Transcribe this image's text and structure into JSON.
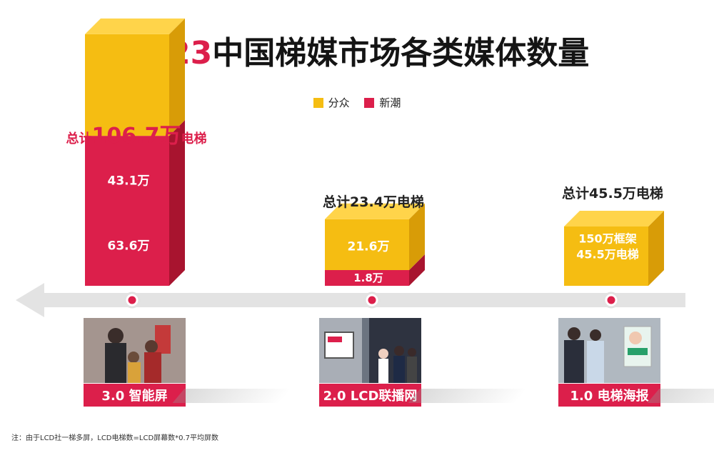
{
  "title": {
    "year": "2023",
    "rest": "中国梯媒市场各类媒体数量"
  },
  "legend": [
    {
      "label": "分众",
      "color": "#f5bd12"
    },
    {
      "label": "新潮",
      "color": "#dc1f4b"
    }
  ],
  "chart_data": {
    "type": "bar",
    "stacked": true,
    "unit": "万",
    "categories": [
      "3.0 智能屏",
      "2.0 LCD联播网",
      "1.0 电梯海报"
    ],
    "series": [
      {
        "name": "新潮",
        "values": [
          63.6,
          1.8,
          0
        ],
        "labels": [
          "63.6万",
          "1.8万",
          ""
        ]
      },
      {
        "name": "分众",
        "values": [
          43.1,
          21.6,
          45.5
        ],
        "labels": [
          "43.1万",
          "21.6万",
          "150万框架\n45.5万电梯"
        ]
      }
    ],
    "totals": [
      {
        "prefix": "总计",
        "value": "106.7万",
        "suffix": "电梯",
        "full": "总计106.7万电梯"
      },
      {
        "full": "总计23.4万电梯"
      },
      {
        "full": "总计45.5万电梯"
      }
    ]
  },
  "footnote": "注：由于LCD社一梯多屏，LCD电梯数=LCD屏幕数*0.7平均屏数"
}
